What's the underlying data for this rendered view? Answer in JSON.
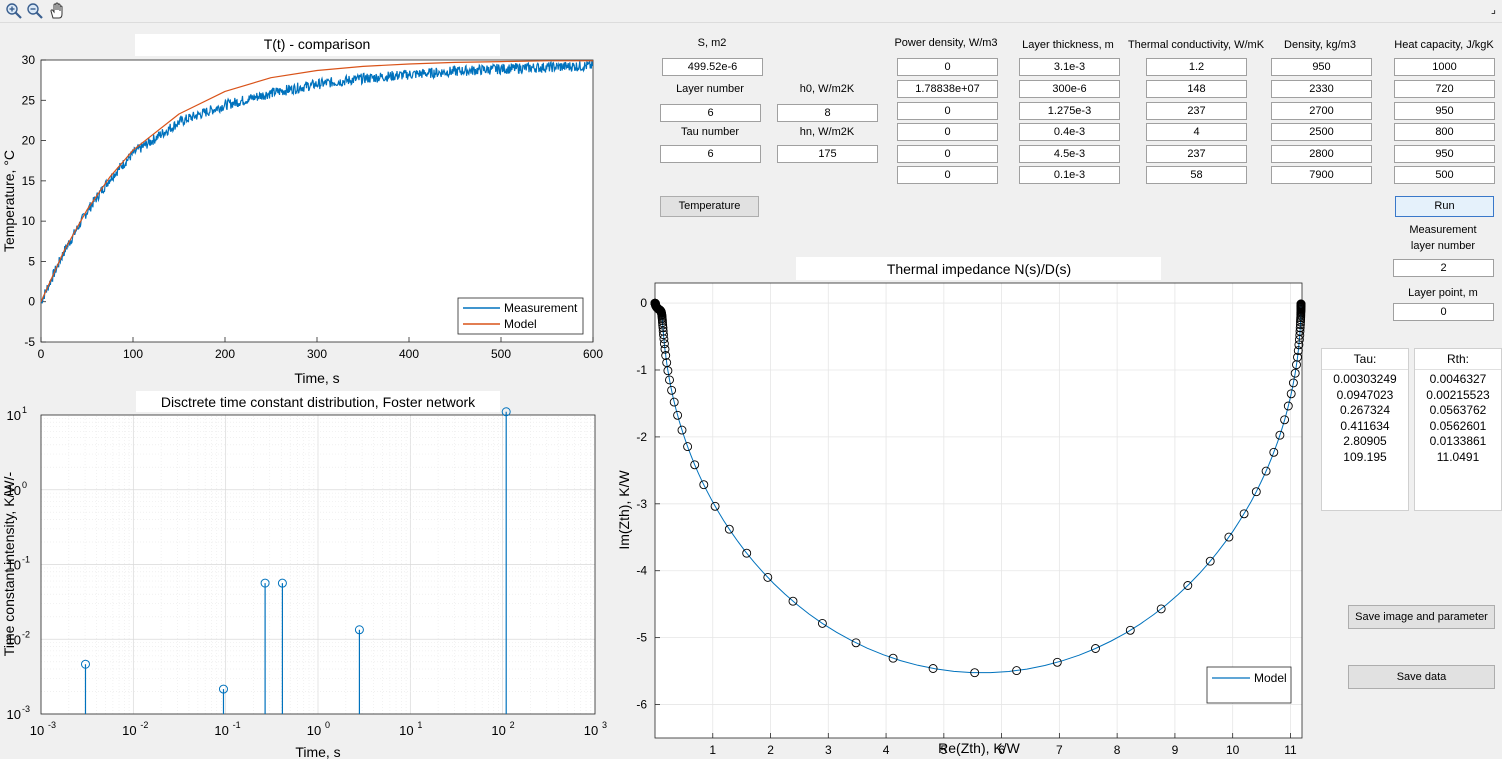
{
  "toolbar": {
    "icons": [
      "zoom-in-icon",
      "zoom-out-icon",
      "pan-hand-icon"
    ],
    "corner_glyph": "⌟"
  },
  "plot1": {
    "title": "T(t) - comparison",
    "xlabel": "Time, s",
    "ylabel": "Temperature, °C",
    "xticks": [
      "0",
      "100",
      "200",
      "300",
      "400",
      "500",
      "600"
    ],
    "yticks": [
      "-5",
      "0",
      "5",
      "10",
      "15",
      "20",
      "25",
      "30"
    ],
    "legend": [
      "Measurement",
      "Model"
    ]
  },
  "plot2": {
    "title": "Disctrete time constant distribution, Foster network",
    "xlabel": "Time, s",
    "ylabel": "Time constant intensity, K/W/-",
    "xticks": [
      "10",
      "10",
      "10",
      "10",
      "10",
      "10",
      "10"
    ],
    "xtick_exp": [
      "-3",
      "-2",
      "-1",
      "0",
      "1",
      "2",
      "3"
    ],
    "yticks": [
      "10",
      "10",
      "10",
      "10",
      "10"
    ],
    "ytick_exp": [
      "-3",
      "-2",
      "-1",
      "0",
      "1"
    ]
  },
  "plot3": {
    "title": "Thermal impedance N(s)/D(s)",
    "xlabel": "Re(Zth), K/W",
    "ylabel": "Im(Zth), K/W",
    "xticks": [
      "1",
      "2",
      "3",
      "4",
      "5",
      "6",
      "7",
      "8",
      "9",
      "10",
      "11"
    ],
    "yticks": [
      "0",
      "-1",
      "-2",
      "-3",
      "-4",
      "-5",
      "-6"
    ],
    "legend": [
      "Model"
    ]
  },
  "params": {
    "s_label": "S, m2",
    "s_value": "499.52e-6",
    "layer_number_label": "Layer number",
    "layer_number_value": "6",
    "h0_label": "h0, W/m2K",
    "h0_value": "8",
    "tau_number_label": "Tau number",
    "tau_number_value": "6",
    "hn_label": "hn, W/m2K",
    "hn_value": "175",
    "temperature_button": "Temperature"
  },
  "layers": {
    "headers": {
      "power": "Power density, W/m3",
      "thickness": "Layer thickness, m",
      "conductivity": "Thermal conductivity, W/mK",
      "density": "Density, kg/m3",
      "heat_capacity": "Heat capacity, J/kgK"
    },
    "power": [
      "0",
      "1.78838e+07",
      "0",
      "0",
      "0",
      "0"
    ],
    "thickness": [
      "3.1e-3",
      "300e-6",
      "1.275e-3",
      "0.4e-3",
      "4.5e-3",
      "0.1e-3"
    ],
    "conductivity": [
      "1.2",
      "148",
      "237",
      "4",
      "237",
      "58"
    ],
    "density": [
      "950",
      "2330",
      "2700",
      "2500",
      "2800",
      "7900"
    ],
    "heat_capacity": [
      "1000",
      "720",
      "950",
      "800",
      "950",
      "500"
    ]
  },
  "controls": {
    "run_button": "Run",
    "measurement_label_1": "Measurement",
    "measurement_label_2": "layer number",
    "measurement_value": "2",
    "layer_point_label": "Layer point, m",
    "layer_point_value": "0",
    "save_image_button": "Save image and parameter",
    "save_data_button": "Save data"
  },
  "results": {
    "tau_header": "Tau:",
    "rth_header": "Rth:",
    "tau": [
      "0.00303249",
      "0.0947023",
      "0.267324",
      "0.411634",
      "2.80905",
      "109.195"
    ],
    "rth": [
      "0.0046327",
      "0.00215523",
      "0.0563762",
      "0.0562601",
      "0.0133861",
      "11.0491"
    ]
  },
  "colors": {
    "measurement": "#0072bd",
    "model": "#d95319",
    "stem": "#0072bd",
    "nyquist_line": "#0072bd",
    "grid": "#e6e6e6"
  },
  "chart_data": [
    {
      "type": "line",
      "title": "T(t) - comparison",
      "xlabel": "Time, s",
      "ylabel": "Temperature, °C",
      "xlim": [
        0,
        600
      ],
      "ylim": [
        -5,
        30
      ],
      "legend_position": "bottom-right",
      "series": [
        {
          "name": "Measurement",
          "x": [
            0,
            25,
            50,
            75,
            100,
            150,
            200,
            250,
            300,
            350,
            400,
            450,
            500,
            550,
            600
          ],
          "y": [
            0,
            6.2,
            11.2,
            15.3,
            18.4,
            22.3,
            24.4,
            25.9,
            27.0,
            27.7,
            28.2,
            28.6,
            28.9,
            29.1,
            29.3
          ]
        },
        {
          "name": "Model",
          "x": [
            0,
            25,
            50,
            75,
            100,
            150,
            200,
            250,
            300,
            350,
            400,
            450,
            500,
            550,
            600
          ],
          "y": [
            0,
            6.3,
            11.4,
            15.5,
            18.8,
            23.3,
            26.1,
            27.8,
            28.7,
            29.2,
            29.5,
            29.7,
            29.8,
            29.9,
            29.9
          ]
        }
      ]
    },
    {
      "type": "scatter",
      "title": "Disctrete time constant distribution, Foster network",
      "xlabel": "Time, s",
      "ylabel": "Time constant intensity, K/W/-",
      "xscale": "log",
      "yscale": "log",
      "xlim": [
        0.001,
        1000
      ],
      "ylim": [
        0.001,
        10
      ],
      "grid": true,
      "series": [
        {
          "x": [
            0.00303249,
            0.0947023,
            0.267324,
            0.411634,
            2.80905,
            109.195
          ],
          "y": [
            0.0046327,
            0.00215523,
            0.0563762,
            0.0562601,
            0.0133861,
            11.0491
          ]
        }
      ]
    },
    {
      "type": "line",
      "title": "Thermal impedance N(s)/D(s)",
      "xlabel": "Re(Zth), K/W",
      "ylabel": "Im(Zth), K/W",
      "xlim": [
        0,
        11.2
      ],
      "ylim": [
        -6.5,
        0.3
      ],
      "grid": true,
      "legend_position": "bottom-right",
      "series": [
        {
          "name": "Model",
          "tau": [
            0.00303249,
            0.0947023,
            0.267324,
            0.411634,
            2.80905,
            109.195
          ],
          "rth": [
            0.0046327,
            0.00215523,
            0.0563762,
            0.0562601,
            0.0133861,
            11.0491
          ]
        }
      ]
    }
  ]
}
